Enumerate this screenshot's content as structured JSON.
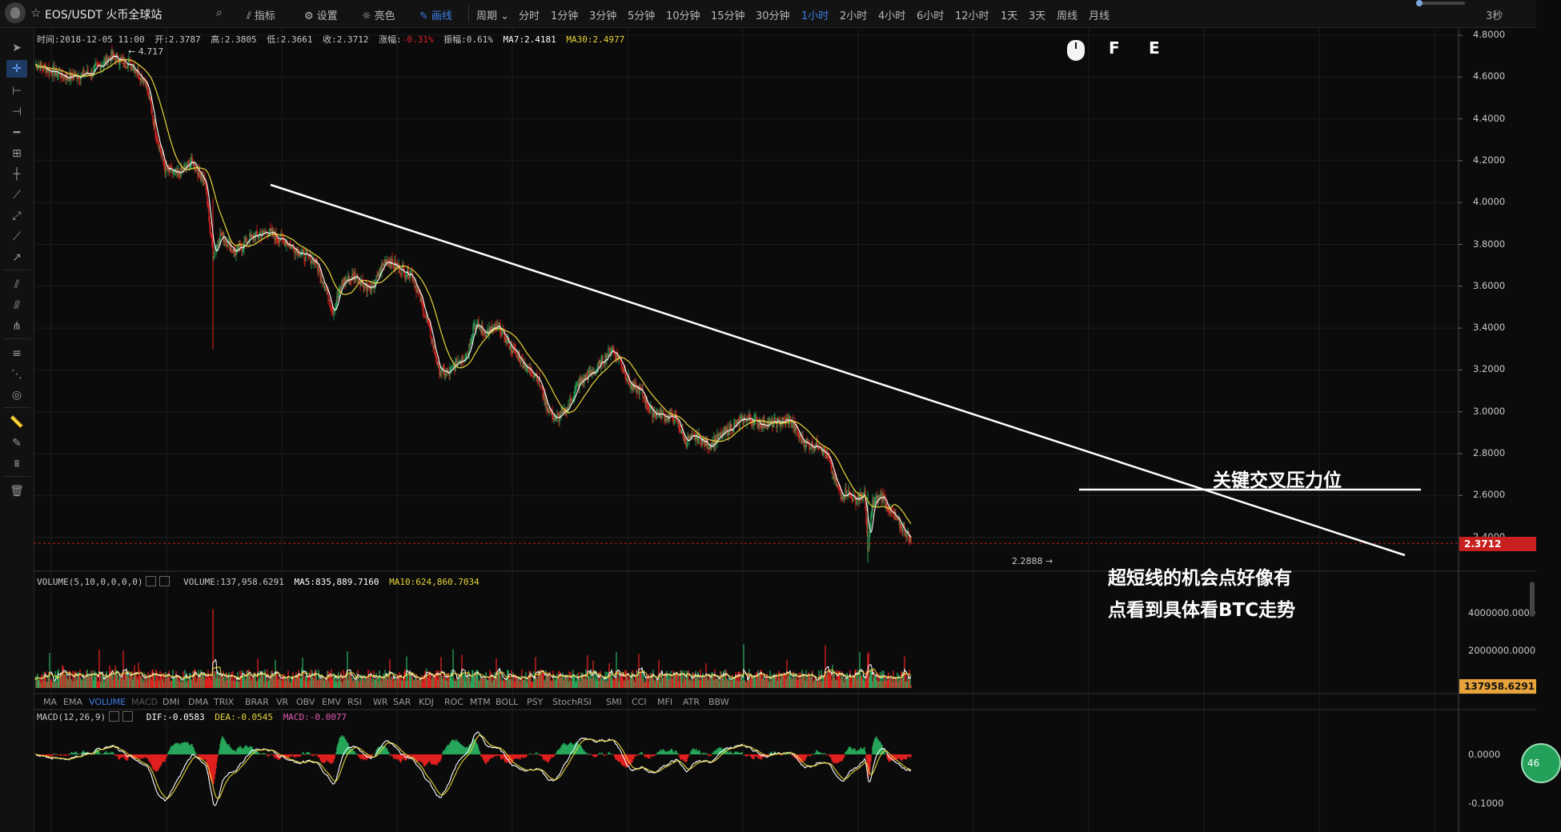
{
  "topbar": {
    "symbol": "EOS/USDT 火币全球站",
    "tools": [
      {
        "icon": "chart-icon",
        "label": "指标"
      },
      {
        "icon": "gear-icon",
        "label": "设置"
      },
      {
        "icon": "sun-icon",
        "label": "亮色"
      },
      {
        "icon": "pencil-icon",
        "label": "画线"
      }
    ],
    "period_label": "周期",
    "periods": [
      "分时",
      "1分钟",
      "3分钟",
      "5分钟",
      "10分钟",
      "15分钟",
      "30分钟",
      "1小时",
      "2小时",
      "4小时",
      "6小时",
      "12小时",
      "1天",
      "3天",
      "周线",
      "月线"
    ],
    "active_period": "1小时",
    "countdown": "3秒"
  },
  "ohlc_info": {
    "time": "时间:2018-12-05 11:00",
    "open": "开:2.3787",
    "high": "高:2.3805",
    "low": "低:2.3661",
    "close": "收:2.3712",
    "change_label": "涨幅:",
    "change_value": "-0.31%",
    "amplitude": "振幅:0.61%",
    "ma7": "MA7:2.4181",
    "ma30": "MA30:2.4977"
  },
  "price_axis": [
    "4.8000",
    "4.6000",
    "4.4000",
    "4.2000",
    "4.0000",
    "3.8000",
    "3.6000",
    "3.4000",
    "3.2000",
    "3.0000",
    "2.8000",
    "2.6000",
    "2.4000"
  ],
  "last_price": "2.3712",
  "high_marker": "← 4.717",
  "low_marker": "2.2888 →",
  "volume_info": {
    "name": "VOLUME(5,10,0,0,0,0)",
    "volume": "VOLUME:137,958.6291",
    "ma5": "MA5:835,889.7160",
    "ma10": "MA10:624,860.7034"
  },
  "volume_axis": [
    "4000000.0000",
    "2000000.0000"
  ],
  "last_volume": "137958.6291",
  "indicator_tabs": [
    "MA",
    "EMA",
    "VOLUME",
    "MACD",
    "DMI",
    "DMA",
    "TRIX",
    "BRAR",
    "VR",
    "OBV",
    "EMV",
    "RSI",
    "WR",
    "SAR",
    "KDJ",
    "ROC",
    "MTM",
    "BOLL",
    "PSY",
    "StochRSI",
    "SMI",
    "CCI",
    "MFI",
    "ATR",
    "BBW"
  ],
  "active_indicator": "VOLUME",
  "macd_info": {
    "name": "MACD(12,26,9)",
    "dif": "DIF:-0.0583",
    "dea": "DEA:-0.0545",
    "macd": "MACD:-0.0077"
  },
  "macd_axis": [
    "0.0000",
    "-0.1000"
  ],
  "annotations": {
    "key_level": "关键交叉压力位",
    "comment_line1": "超短线的机会点好像有",
    "comment_line2": "点看到具体看BTC走势",
    "letter_f": "F",
    "letter_e": "E"
  },
  "green_badge": "46",
  "colors": {
    "up": "#26a65b",
    "down": "#e0201f",
    "ma7": "#ffffff",
    "ma30": "#e8d43a",
    "accent": "#3c7fe6",
    "last_price_bg": "#c8201f"
  }
}
